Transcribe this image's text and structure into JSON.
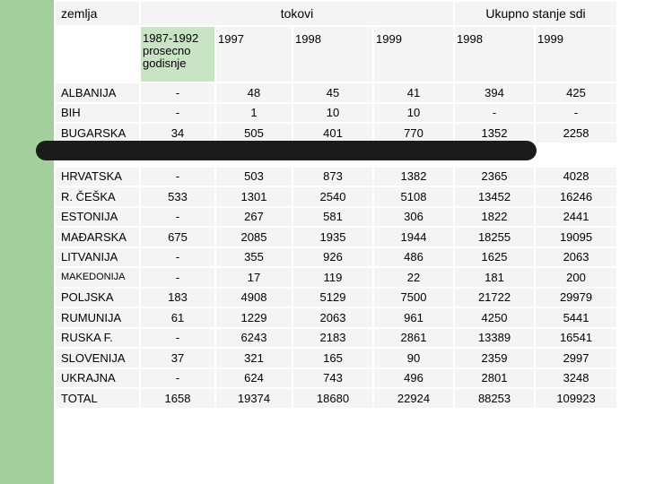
{
  "header": {
    "country_col": "zemlja",
    "flows_group": "tokovi",
    "stock_group": "Ukupno stanje sdi",
    "sub_labels": [
      "1987-1992 prosecno godisnje",
      "1997",
      "1998",
      "1999",
      "1998",
      "1999"
    ]
  },
  "rows": [
    {
      "country": "ALBANIJA",
      "values": [
        "-",
        "48",
        "45",
        "41",
        "394",
        "425"
      ]
    },
    {
      "country": "BIH",
      "values": [
        "-",
        "1",
        "10",
        "10",
        "-",
        "-"
      ]
    },
    {
      "country": "BUGARSKA",
      "values": [
        "34",
        "505",
        "401",
        "770",
        "1352",
        "2258"
      ]
    },
    {
      "country": "HRVATSKA",
      "values": [
        "-",
        "503",
        "873",
        "1382",
        "2365",
        "4028"
      ]
    },
    {
      "country": "R. ČEŠKA",
      "values": [
        "533",
        "1301",
        "2540",
        "5108",
        "13452",
        "16246"
      ]
    },
    {
      "country": "ESTONIJA",
      "values": [
        "-",
        "267",
        "581",
        "306",
        "1822",
        "2441"
      ]
    },
    {
      "country": "MAĐARSKA",
      "values": [
        "675",
        "2085",
        "1935",
        "1944",
        "18255",
        "19095"
      ]
    },
    {
      "country": "LITVANIJA",
      "values": [
        "-",
        "355",
        "926",
        "486",
        "1625",
        "2063"
      ]
    },
    {
      "country": "MAKEDONIJA",
      "values": [
        "-",
        "17",
        "119",
        "22",
        "181",
        "200"
      ]
    },
    {
      "country": "POLJSKA",
      "values": [
        "183",
        "4908",
        "5129",
        "7500",
        "21722",
        "29979"
      ]
    },
    {
      "country": "RUMUNIJA",
      "values": [
        "61",
        "1229",
        "2063",
        "961",
        "4250",
        "5441"
      ]
    },
    {
      "country": "RUSKA F.",
      "values": [
        "-",
        "6243",
        "2183",
        "2861",
        "13389",
        "16541"
      ]
    },
    {
      "country": "SLOVENIJA",
      "values": [
        "37",
        "321",
        "165",
        "90",
        "2359",
        "2997"
      ]
    },
    {
      "country": "UKRAJNA",
      "values": [
        "-",
        "624",
        "743",
        "496",
        "2801",
        "3248"
      ]
    },
    {
      "country": "TOTAL",
      "values": [
        "1658",
        "19374",
        "18680",
        "22924",
        "88253",
        "109923"
      ]
    }
  ]
}
